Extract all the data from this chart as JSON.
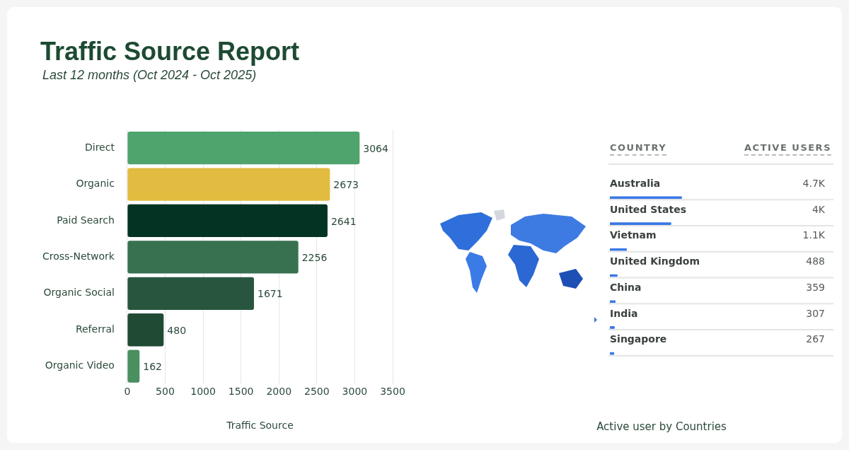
{
  "chart_data": [
    {
      "type": "bar",
      "orientation": "horizontal",
      "title": "Traffic Source Report",
      "subtitle": "Last 12 months (Oct 2024 - Oct 2025)",
      "xlabel": "Traffic Source",
      "categories": [
        "Direct",
        "Organic",
        "Paid Search",
        "Cross-Network",
        "Organic Social",
        "Referral",
        "Organic Video"
      ],
      "values": [
        3064,
        2673,
        2641,
        2256,
        1671,
        480,
        162
      ],
      "colors": [
        "#4fa36c",
        "#e2bb41",
        "#033322",
        "#387150",
        "#28553d",
        "#214a35",
        "#4a8f5f"
      ],
      "xlim": [
        0,
        3500
      ],
      "xticks": [
        0,
        500,
        1000,
        1500,
        2000,
        2500,
        3000,
        3500
      ],
      "grid": "x",
      "data_labels": true
    },
    {
      "type": "bar",
      "orientation": "horizontal",
      "title": "Active user by Countries",
      "ylabel": "COUNTRY",
      "xlabel": "ACTIVE USERS",
      "categories": [
        "Australia",
        "United States",
        "Vietnam",
        "United Kingdom",
        "China",
        "India",
        "Singapore"
      ],
      "values": [
        4700,
        4000,
        1100,
        488,
        359,
        307,
        267
      ],
      "color": "#3b78e7",
      "value_labels": [
        "4.7K",
        "4K",
        "1.1K",
        "488",
        "359",
        "307",
        "267"
      ]
    }
  ]
}
